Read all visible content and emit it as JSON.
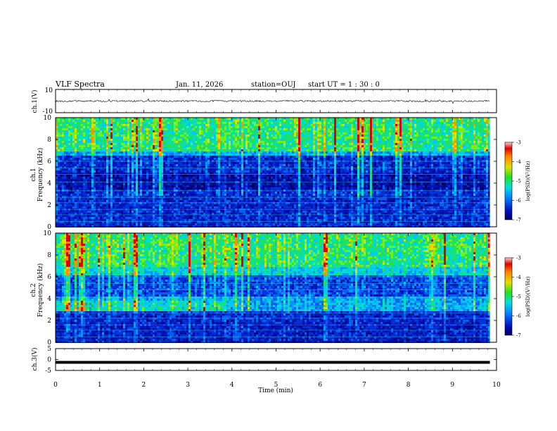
{
  "header": {
    "title": "VLF Spectra",
    "date": "Jan. 11, 2026",
    "station": "station=OUJ",
    "start_ut": "start  UT =   1 : 30 : 0"
  },
  "chart_data": [
    {
      "type": "line",
      "name": "ch1-waveform",
      "ylabel": "ch.1(V)",
      "ylim": [
        -10,
        10
      ],
      "yticks": [
        "10",
        "-10"
      ],
      "baseline": 0
    },
    {
      "type": "heatmap",
      "name": "ch1-spectrogram",
      "ylabel_line1": "ch.1",
      "ylabel_line2": "Frequency (kHz)",
      "ylim": [
        0,
        10
      ],
      "yticks": [
        "0",
        "2",
        "4",
        "6",
        "8",
        "10"
      ],
      "colorbar": {
        "label": "log(PSD)(V²/Hz)",
        "range": [
          -7,
          -3
        ],
        "ticks": [
          "-3",
          "-4",
          "-5",
          "-6",
          "-7"
        ]
      }
    },
    {
      "type": "heatmap",
      "name": "ch2-spectrogram",
      "ylabel_line1": "ch.2",
      "ylabel_line2": "Frequency (kHz)",
      "ylim": [
        0,
        10
      ],
      "yticks": [
        "0",
        "2",
        "4",
        "6",
        "8",
        "10"
      ],
      "colorbar": {
        "label": "log(PSD)(V²/Hz)",
        "range": [
          -7,
          -3
        ],
        "ticks": [
          "-3",
          "-4",
          "-5",
          "-6",
          "-7"
        ]
      }
    },
    {
      "type": "line",
      "name": "ch3-waveform",
      "ylabel": "ch.3(V)",
      "ylim": [
        -5,
        5
      ],
      "yticks": [
        "5",
        "0",
        "-5"
      ],
      "baseline": -1.3
    }
  ],
  "x_axis": {
    "label": "Time (min)",
    "xlim": [
      0,
      10
    ],
    "ticks": [
      "0",
      "1",
      "2",
      "3",
      "4",
      "5",
      "6",
      "7",
      "8",
      "9",
      "10"
    ],
    "data_end": 9.85
  }
}
